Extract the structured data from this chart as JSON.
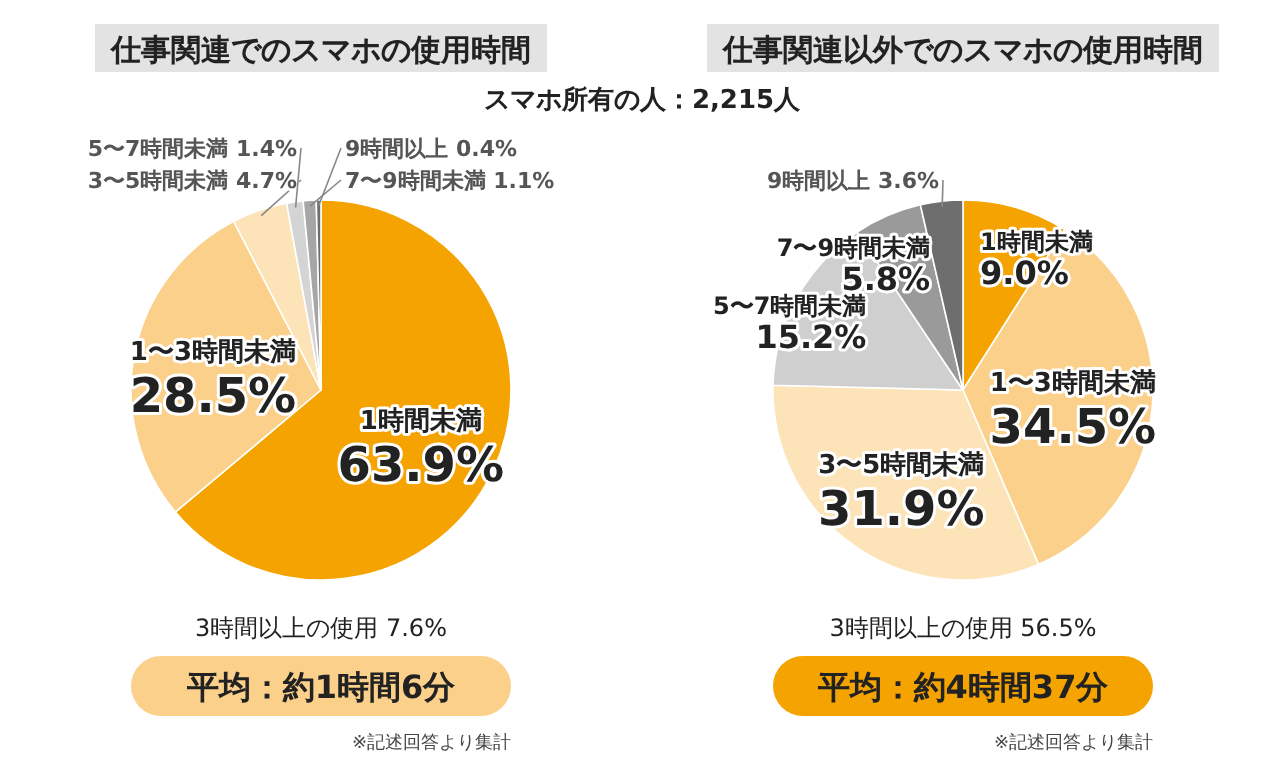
{
  "chart_data": [
    {
      "type": "pie",
      "title": "仕事関連でのスマホの使用時間",
      "categories": [
        "1時間未満",
        "1〜3時間未満",
        "3〜5時間未満",
        "5〜7時間未満",
        "7〜9時間未満",
        "9時間以上"
      ],
      "values": [
        63.9,
        28.5,
        4.7,
        1.4,
        1.1,
        0.4
      ],
      "value_labels": [
        "63.9%",
        "28.5%",
        "4.7%",
        "1.4%",
        "1.1%",
        "0.4%"
      ],
      "colors": [
        "#f5a300",
        "#fbd08a",
        "#fde3b8",
        "#d4d4d4",
        "#a6a6a6",
        "#6e6e6e"
      ],
      "annotations": [
        "3時間以上の使用 7.6%",
        "平均：約1時間6分",
        "※記述回答より集計"
      ]
    },
    {
      "type": "pie",
      "title": "仕事関連以外でのスマホの使用時間",
      "categories": [
        "1時間未満",
        "1〜3時間未満",
        "3〜5時間未満",
        "5〜7時間未満",
        "7〜9時間未満",
        "9時間以上"
      ],
      "values": [
        9.0,
        34.5,
        31.9,
        15.2,
        5.8,
        3.6
      ],
      "value_labels": [
        "9.0%",
        "34.5%",
        "31.9%",
        "15.2%",
        "5.8%",
        "3.6%"
      ],
      "colors": [
        "#f5a300",
        "#fbd08a",
        "#fde3b8",
        "#cfcfcf",
        "#9a9a9a",
        "#6e6e6e"
      ],
      "annotations": [
        "3時間以上の使用 56.5%",
        "平均：約4時間37分",
        "※記述回答より集計"
      ]
    },
    {
      "type": "other",
      "annotations": [
        "スマホ所有の人：2,215人"
      ]
    }
  ]
}
